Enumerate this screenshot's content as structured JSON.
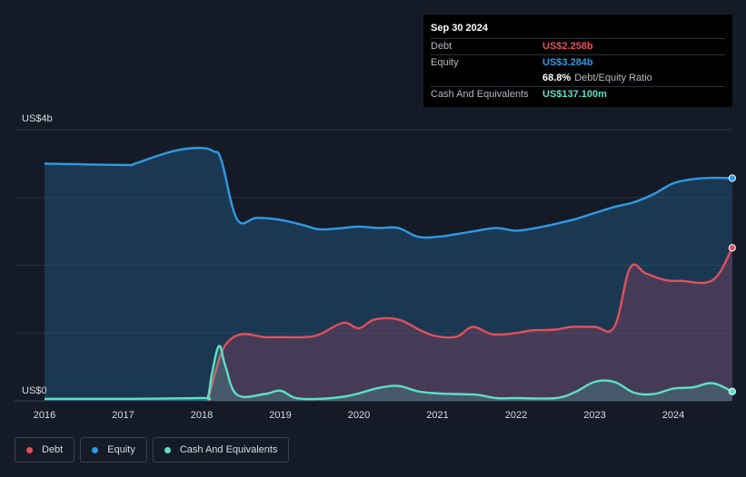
{
  "chart_data": {
    "type": "area",
    "y_axis": {
      "min_label": "US$0",
      "max_label": "US$4b",
      "ylim": [
        0,
        4.0
      ],
      "unit": "billion USD"
    },
    "x_ticks": [
      "2016",
      "2017",
      "2018",
      "2019",
      "2020",
      "2021",
      "2022",
      "2023",
      "2024"
    ],
    "grid": true,
    "legend_position": "bottom-left",
    "series": [
      {
        "name": "Debt",
        "color": "#e0505c",
        "points": [
          [
            2018.08,
            0.0
          ],
          [
            2018.18,
            0.45
          ],
          [
            2018.3,
            0.82
          ],
          [
            2018.5,
            0.98
          ],
          [
            2018.8,
            0.94
          ],
          [
            2019.0,
            0.94
          ],
          [
            2019.3,
            0.94
          ],
          [
            2019.5,
            0.98
          ],
          [
            2019.8,
            1.15
          ],
          [
            2020.0,
            1.07
          ],
          [
            2020.2,
            1.2
          ],
          [
            2020.5,
            1.2
          ],
          [
            2020.8,
            1.03
          ],
          [
            2021.0,
            0.95
          ],
          [
            2021.25,
            0.95
          ],
          [
            2021.45,
            1.09
          ],
          [
            2021.7,
            0.98
          ],
          [
            2022.0,
            1.0
          ],
          [
            2022.2,
            1.04
          ],
          [
            2022.5,
            1.05
          ],
          [
            2022.7,
            1.09
          ],
          [
            2023.0,
            1.09
          ],
          [
            2023.25,
            1.09
          ],
          [
            2023.45,
            1.96
          ],
          [
            2023.65,
            1.88
          ],
          [
            2023.9,
            1.78
          ],
          [
            2024.1,
            1.77
          ],
          [
            2024.5,
            1.78
          ],
          [
            2024.75,
            2.258
          ]
        ]
      },
      {
        "name": "Equity",
        "color": "#2f9ae5",
        "points": [
          [
            2016.0,
            3.5
          ],
          [
            2017.0,
            3.48
          ],
          [
            2017.15,
            3.5
          ],
          [
            2017.4,
            3.6
          ],
          [
            2017.7,
            3.7
          ],
          [
            2018.0,
            3.73
          ],
          [
            2018.15,
            3.68
          ],
          [
            2018.25,
            3.55
          ],
          [
            2018.45,
            2.68
          ],
          [
            2018.7,
            2.7
          ],
          [
            2019.0,
            2.67
          ],
          [
            2019.3,
            2.59
          ],
          [
            2019.5,
            2.53
          ],
          [
            2019.8,
            2.55
          ],
          [
            2020.0,
            2.57
          ],
          [
            2020.25,
            2.55
          ],
          [
            2020.5,
            2.55
          ],
          [
            2020.75,
            2.42
          ],
          [
            2021.0,
            2.42
          ],
          [
            2021.25,
            2.46
          ],
          [
            2021.5,
            2.51
          ],
          [
            2021.75,
            2.55
          ],
          [
            2022.0,
            2.51
          ],
          [
            2022.25,
            2.55
          ],
          [
            2022.5,
            2.61
          ],
          [
            2022.75,
            2.68
          ],
          [
            2023.0,
            2.77
          ],
          [
            2023.25,
            2.86
          ],
          [
            2023.5,
            2.93
          ],
          [
            2023.75,
            3.05
          ],
          [
            2024.0,
            3.21
          ],
          [
            2024.25,
            3.27
          ],
          [
            2024.5,
            3.29
          ],
          [
            2024.75,
            3.284
          ]
        ]
      },
      {
        "name": "Cash And Equivalents",
        "color": "#5ee0c6",
        "points": [
          [
            2016.0,
            0.03
          ],
          [
            2017.0,
            0.03
          ],
          [
            2018.0,
            0.04
          ],
          [
            2018.08,
            0.06
          ],
          [
            2018.13,
            0.4
          ],
          [
            2018.22,
            0.81
          ],
          [
            2018.3,
            0.52
          ],
          [
            2018.45,
            0.09
          ],
          [
            2018.8,
            0.1
          ],
          [
            2019.0,
            0.15
          ],
          [
            2019.2,
            0.04
          ],
          [
            2019.5,
            0.03
          ],
          [
            2019.8,
            0.06
          ],
          [
            2020.0,
            0.11
          ],
          [
            2020.25,
            0.19
          ],
          [
            2020.5,
            0.22
          ],
          [
            2020.75,
            0.14
          ],
          [
            2021.0,
            0.11
          ],
          [
            2021.25,
            0.1
          ],
          [
            2021.5,
            0.09
          ],
          [
            2021.75,
            0.04
          ],
          [
            2022.0,
            0.04
          ],
          [
            2022.5,
            0.04
          ],
          [
            2022.75,
            0.13
          ],
          [
            2023.0,
            0.28
          ],
          [
            2023.25,
            0.28
          ],
          [
            2023.5,
            0.12
          ],
          [
            2023.75,
            0.1
          ],
          [
            2024.0,
            0.18
          ],
          [
            2024.25,
            0.2
          ],
          [
            2024.5,
            0.26
          ],
          [
            2024.75,
            0.137
          ]
        ]
      }
    ]
  },
  "tooltip": {
    "date": "Sep 30 2024",
    "rows": [
      {
        "label": "Debt",
        "value": "US$2.258b",
        "color": "#e0505c"
      },
      {
        "label": "Equity",
        "value": "US$3.284b",
        "color": "#2f9ae5"
      },
      {
        "label": "Cash And Equivalents",
        "value": "US$137.100m",
        "color": "#5ee0c6"
      }
    ],
    "ratio_value": "68.8%",
    "ratio_label": "Debt/Equity Ratio"
  },
  "legend": [
    {
      "label": "Debt",
      "color": "#e0505c"
    },
    {
      "label": "Equity",
      "color": "#2f9ae5"
    },
    {
      "label": "Cash And Equivalents",
      "color": "#5ee0c6"
    }
  ]
}
